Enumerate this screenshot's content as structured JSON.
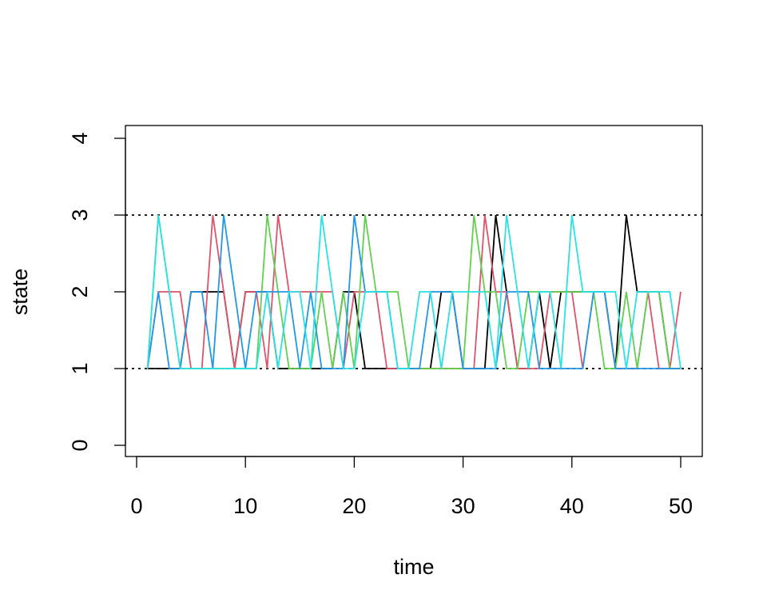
{
  "chart_data": {
    "type": "line",
    "title": "",
    "xlabel": "time",
    "ylabel": "state",
    "xlim": [
      0,
      52
    ],
    "ylim": [
      0,
      4
    ],
    "x_ticks": [
      "0",
      "10",
      "20",
      "30",
      "40",
      "50"
    ],
    "y_ticks": [
      "0",
      "1",
      "2",
      "3",
      "4"
    ],
    "reference_lines": [
      1,
      3
    ],
    "grid": false,
    "x": [
      1,
      2,
      3,
      4,
      5,
      6,
      7,
      8,
      9,
      10,
      11,
      12,
      13,
      14,
      15,
      16,
      17,
      18,
      19,
      20,
      21,
      22,
      23,
      24,
      25,
      26,
      27,
      28,
      29,
      30,
      31,
      32,
      33,
      34,
      35,
      36,
      37,
      38,
      39,
      40,
      41,
      42,
      43,
      44,
      45,
      46,
      47,
      48,
      49,
      50
    ],
    "series": [
      {
        "color": "#000000",
        "values": [
          1,
          1,
          1,
          1,
          2,
          2,
          2,
          2,
          1,
          2,
          2,
          2,
          1,
          1,
          1,
          1,
          1,
          1,
          2,
          2,
          1,
          1,
          1,
          1,
          1,
          1,
          1,
          2,
          2,
          1,
          1,
          1,
          3,
          2,
          1,
          1,
          2,
          1,
          2,
          2,
          2,
          2,
          2,
          1,
          3,
          2,
          2,
          2,
          1,
          1
        ]
      },
      {
        "color": "#DF536B",
        "values": [
          1,
          2,
          2,
          2,
          1,
          1,
          3,
          2,
          1,
          2,
          2,
          1,
          3,
          2,
          2,
          2,
          2,
          2,
          1,
          2,
          2,
          2,
          1,
          1,
          1,
          1,
          1,
          1,
          1,
          1,
          1,
          3,
          2,
          2,
          1,
          1,
          1,
          2,
          2,
          2,
          1,
          2,
          2,
          1,
          1,
          1,
          2,
          1,
          1,
          2
        ]
      },
      {
        "color": "#61D04F",
        "values": [
          1,
          3,
          2,
          1,
          1,
          1,
          1,
          1,
          1,
          1,
          1,
          3,
          2,
          1,
          1,
          1,
          2,
          1,
          2,
          1,
          3,
          2,
          2,
          2,
          1,
          1,
          1,
          1,
          1,
          1,
          3,
          2,
          2,
          1,
          1,
          2,
          2,
          2,
          2,
          2,
          2,
          2,
          1,
          1,
          2,
          1,
          2,
          2,
          1,
          1
        ]
      },
      {
        "color": "#2297E6",
        "values": [
          1,
          2,
          1,
          1,
          2,
          2,
          1,
          3,
          2,
          1,
          2,
          2,
          2,
          2,
          1,
          2,
          1,
          1,
          1,
          3,
          2,
          2,
          2,
          1,
          1,
          1,
          2,
          2,
          2,
          1,
          1,
          1,
          1,
          2,
          2,
          2,
          1,
          1,
          1,
          1,
          1,
          2,
          2,
          1,
          1,
          1,
          1,
          1,
          1,
          1
        ]
      },
      {
        "color": "#28E2E5",
        "values": [
          1,
          3,
          2,
          1,
          1,
          1,
          1,
          1,
          1,
          1,
          1,
          2,
          1,
          2,
          2,
          1,
          3,
          2,
          1,
          1,
          2,
          2,
          2,
          1,
          1,
          2,
          2,
          1,
          2,
          2,
          2,
          2,
          1,
          3,
          2,
          1,
          2,
          2,
          1,
          3,
          2,
          2,
          2,
          2,
          1,
          2,
          2,
          2,
          2,
          1
        ]
      }
    ]
  }
}
